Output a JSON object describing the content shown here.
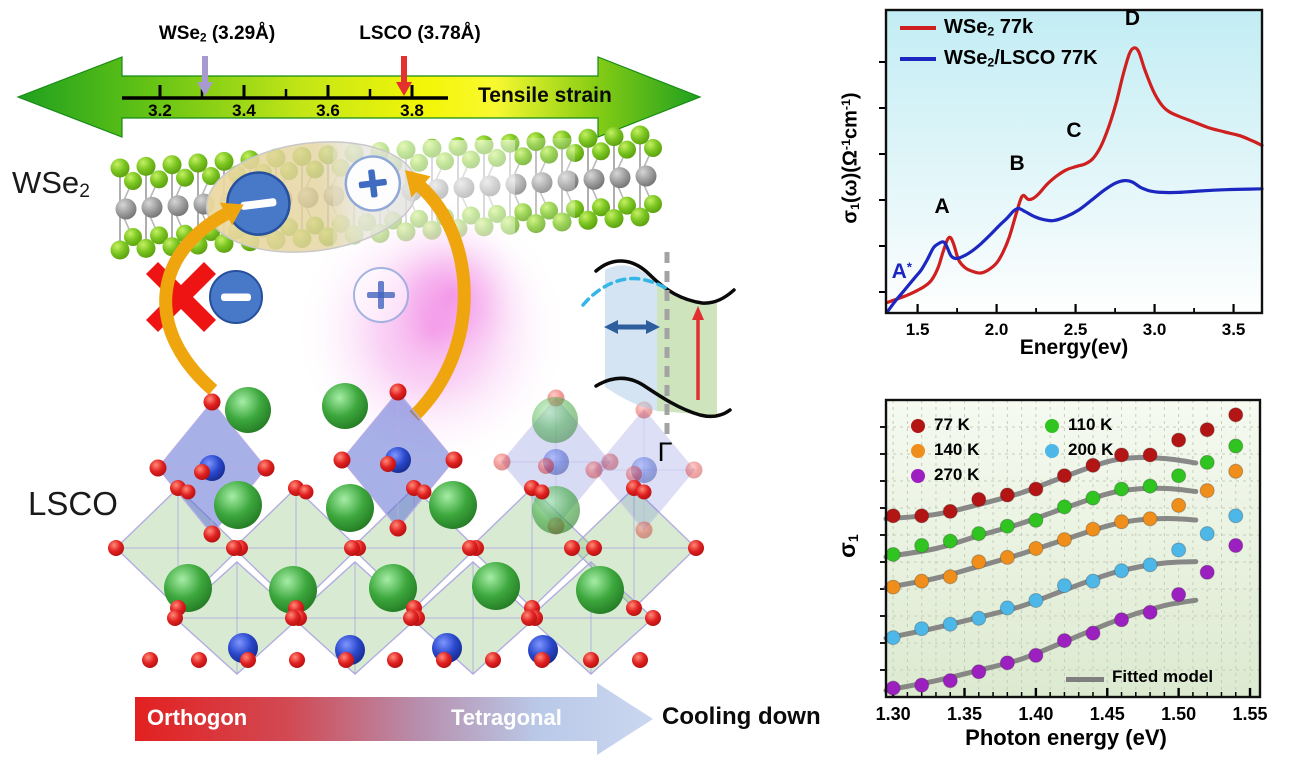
{
  "diagram": {
    "strain_arrow": {
      "wse2_label_rich": [
        {
          "t": "WSe"
        },
        {
          "t": "2",
          "s": "sub"
        },
        {
          "t": " (3.29Å)"
        }
      ],
      "lsco_label": "LSCO (3.78Å)",
      "axis_tick_labels": [
        "3.2",
        "3.4",
        "3.6",
        "3.8"
      ],
      "label": "Tensile strain",
      "wse2_pointer_color": "#a89ad0",
      "lsco_pointer_color": "#e53030",
      "arrow_green": "#1fa01f",
      "arrow_yellow": "#f4f607"
    },
    "wse2_layer_label_rich": [
      {
        "t": "WSe"
      },
      {
        "t": "2",
        "s": "sub"
      }
    ],
    "lsco_layer_label": "LSCO",
    "gamma_label": "Γ",
    "phase_arrow": {
      "left_label": "Orthogon",
      "right_label": "Tetragonal",
      "outside_label": "Cooling down",
      "red": "#e32020",
      "blue": "#bac9e8"
    }
  },
  "chart_data": [
    {
      "id": "optical-conductivity",
      "type": "line",
      "xlabel": "Energy(ev)",
      "ylabel_rich": [
        {
          "t": "σ"
        },
        {
          "t": "1",
          "s": "sub"
        },
        {
          "t": "(ω)(Ω"
        },
        {
          "t": "-1",
          "s": "sup"
        },
        {
          "t": "cm"
        },
        {
          "t": "-1",
          "s": "sup"
        },
        {
          "t": ")"
        }
      ],
      "xlim": [
        1.3,
        3.68
      ],
      "x_ticks": [
        1.5,
        2.0,
        2.5,
        3.0,
        3.5
      ],
      "x_tick_labels": [
        "1.5",
        "2.0",
        "2.5",
        "3.0",
        "3.5"
      ],
      "x_minor_ticks": [
        1.75,
        2.25,
        2.75,
        3.25
      ],
      "background": {
        "top": "#c2edf4",
        "bottom": "#ffffff"
      },
      "legend": [
        {
          "name_rich": [
            {
              "t": "WSe"
            },
            {
              "t": "2",
              "s": "sub"
            },
            {
              "t": " 77k"
            }
          ],
          "color": "#cf1f1f"
        },
        {
          "name_rich": [
            {
              "t": "WSe"
            },
            {
              "t": "2",
              "s": "sub"
            },
            {
              "t": "/LSCO 77K"
            }
          ],
          "color": "#1b27c0"
        }
      ],
      "series": [
        {
          "key": "wse2_77k",
          "color": "#cf1f1f",
          "points": [
            [
              1.31,
              0.035
            ],
            [
              1.38,
              0.048
            ],
            [
              1.44,
              0.06
            ],
            [
              1.5,
              0.075
            ],
            [
              1.55,
              0.09
            ],
            [
              1.59,
              0.11
            ],
            [
              1.63,
              0.15
            ],
            [
              1.66,
              0.2
            ],
            [
              1.69,
              0.243
            ],
            [
              1.71,
              0.248
            ],
            [
              1.73,
              0.225
            ],
            [
              1.76,
              0.175
            ],
            [
              1.8,
              0.15
            ],
            [
              1.85,
              0.137
            ],
            [
              1.9,
              0.132
            ],
            [
              1.95,
              0.143
            ],
            [
              2.0,
              0.165
            ],
            [
              2.04,
              0.2
            ],
            [
              2.08,
              0.25
            ],
            [
              2.12,
              0.32
            ],
            [
              2.15,
              0.372
            ],
            [
              2.17,
              0.388
            ],
            [
              2.2,
              0.375
            ],
            [
              2.23,
              0.378
            ],
            [
              2.27,
              0.395
            ],
            [
              2.32,
              0.425
            ],
            [
              2.38,
              0.452
            ],
            [
              2.44,
              0.472
            ],
            [
              2.5,
              0.483
            ],
            [
              2.56,
              0.492
            ],
            [
              2.61,
              0.51
            ],
            [
              2.66,
              0.55
            ],
            [
              2.71,
              0.615
            ],
            [
              2.76,
              0.7
            ],
            [
              2.8,
              0.785
            ],
            [
              2.84,
              0.855
            ],
            [
              2.87,
              0.875
            ],
            [
              2.9,
              0.862
            ],
            [
              2.94,
              0.8
            ],
            [
              2.99,
              0.735
            ],
            [
              3.04,
              0.69
            ],
            [
              3.09,
              0.665
            ],
            [
              3.16,
              0.648
            ],
            [
              3.24,
              0.632
            ],
            [
              3.34,
              0.612
            ],
            [
              3.44,
              0.598
            ],
            [
              3.54,
              0.585
            ],
            [
              3.62,
              0.568
            ],
            [
              3.68,
              0.553
            ]
          ]
        },
        {
          "key": "wse2_lsco_77k",
          "color": "#1b27c0",
          "points": [
            [
              1.31,
              0.005
            ],
            [
              1.36,
              0.04
            ],
            [
              1.4,
              0.065
            ],
            [
              1.44,
              0.09
            ],
            [
              1.48,
              0.115
            ],
            [
              1.52,
              0.14
            ],
            [
              1.56,
              0.175
            ],
            [
              1.6,
              0.215
            ],
            [
              1.63,
              0.228
            ],
            [
              1.66,
              0.235
            ],
            [
              1.68,
              0.225
            ],
            [
              1.71,
              0.19
            ],
            [
              1.74,
              0.18
            ],
            [
              1.78,
              0.185
            ],
            [
              1.84,
              0.203
            ],
            [
              1.9,
              0.228
            ],
            [
              1.96,
              0.258
            ],
            [
              2.02,
              0.29
            ],
            [
              2.07,
              0.315
            ],
            [
              2.11,
              0.338
            ],
            [
              2.14,
              0.345
            ],
            [
              2.18,
              0.335
            ],
            [
              2.24,
              0.318
            ],
            [
              2.3,
              0.308
            ],
            [
              2.36,
              0.305
            ],
            [
              2.44,
              0.318
            ],
            [
              2.52,
              0.34
            ],
            [
              2.6,
              0.372
            ],
            [
              2.68,
              0.405
            ],
            [
              2.75,
              0.428
            ],
            [
              2.81,
              0.437
            ],
            [
              2.86,
              0.432
            ],
            [
              2.91,
              0.415
            ],
            [
              2.97,
              0.403
            ],
            [
              3.05,
              0.398
            ],
            [
              3.15,
              0.398
            ],
            [
              3.3,
              0.403
            ],
            [
              3.45,
              0.407
            ],
            [
              3.6,
              0.409
            ],
            [
              3.68,
              0.41
            ]
          ]
        }
      ],
      "annotations": [
        {
          "text_rich": [
            {
              "t": "A"
            }
          ],
          "x": 1.655,
          "y": 0.315,
          "color": "#000000"
        },
        {
          "text_rich": [
            {
              "t": "A"
            },
            {
              "t": "*",
              "s": "sup"
            }
          ],
          "x": 1.4,
          "y": 0.1,
          "color": "#1b27c0"
        },
        {
          "text_rich": [
            {
              "t": "B"
            }
          ],
          "x": 2.13,
          "y": 0.455,
          "color": "#000000"
        },
        {
          "text_rich": [
            {
              "t": "C"
            }
          ],
          "x": 2.49,
          "y": 0.565,
          "color": "#000000"
        },
        {
          "text_rich": [
            {
              "t": "D"
            }
          ],
          "x": 2.86,
          "y": 0.935,
          "color": "#000000"
        }
      ]
    },
    {
      "id": "sigma1-vs-photon-energy",
      "type": "scatter",
      "xlabel": "Photon energy (eV)",
      "ylabel_rich": [
        {
          "t": "σ"
        },
        {
          "t": "1",
          "s": "sub"
        }
      ],
      "xlim": [
        1.295,
        1.557
      ],
      "x_ticks": [
        1.3,
        1.35,
        1.4,
        1.45,
        1.5,
        1.55
      ],
      "x_tick_labels": [
        "1.30",
        "1.35",
        "1.40",
        "1.45",
        "1.50",
        "1.55"
      ],
      "background": {
        "top": "#f6faf1",
        "bottom": "#dcead0"
      },
      "grid": {
        "dashed": true,
        "color": "#c6cdbb",
        "x_step": 0.01,
        "y_lines": 10
      },
      "x": [
        1.3,
        1.32,
        1.34,
        1.36,
        1.38,
        1.4,
        1.42,
        1.44,
        1.46,
        1.48,
        1.5,
        1.52,
        1.54
      ],
      "series": [
        {
          "name": "77 K",
          "color": "#b31414",
          "values": [
            0.61,
            0.61,
            0.625,
            0.665,
            0.68,
            0.7,
            0.745,
            0.78,
            0.815,
            0.815,
            0.865,
            0.9,
            0.95
          ]
        },
        {
          "name": "140 K",
          "color": "#ef8e1b",
          "values": [
            0.37,
            0.39,
            0.405,
            0.455,
            0.47,
            0.5,
            0.53,
            0.565,
            0.59,
            0.6,
            0.645,
            0.695,
            0.76
          ]
        },
        {
          "name": "270 K",
          "color": "#9c1fbf",
          "values": [
            0.03,
            0.04,
            0.055,
            0.085,
            0.115,
            0.14,
            0.19,
            0.215,
            0.26,
            0.285,
            0.345,
            0.42,
            0.51
          ]
        },
        {
          "name": "110 K",
          "color": "#2fc41f",
          "values": [
            0.48,
            0.51,
            0.525,
            0.55,
            0.575,
            0.595,
            0.64,
            0.67,
            0.7,
            0.71,
            0.745,
            0.79,
            0.845
          ]
        },
        {
          "name": "200 K",
          "color": "#4db8e8",
          "values": [
            0.2,
            0.23,
            0.245,
            0.265,
            0.3,
            0.325,
            0.375,
            0.39,
            0.425,
            0.445,
            0.495,
            0.55,
            0.61
          ]
        }
      ],
      "legend_layout": {
        "col1": [
          0,
          1,
          2
        ],
        "col2": [
          3,
          4
        ]
      },
      "fitted": {
        "label": "Fitted model",
        "color": "#7f7f7f",
        "curves": [
          [
            [
              1.295,
              0.6
            ],
            [
              1.33,
              0.615
            ],
            [
              1.36,
              0.648
            ],
            [
              1.39,
              0.688
            ],
            [
              1.42,
              0.742
            ],
            [
              1.45,
              0.792
            ],
            [
              1.47,
              0.806
            ],
            [
              1.492,
              0.802
            ],
            [
              1.512,
              0.788
            ]
          ],
          [
            [
              1.295,
              0.368
            ],
            [
              1.33,
              0.4
            ],
            [
              1.36,
              0.44
            ],
            [
              1.39,
              0.482
            ],
            [
              1.42,
              0.53
            ],
            [
              1.45,
              0.576
            ],
            [
              1.47,
              0.595
            ],
            [
              1.492,
              0.601
            ],
            [
              1.512,
              0.596
            ]
          ],
          [
            [
              1.295,
              0.022
            ],
            [
              1.33,
              0.055
            ],
            [
              1.36,
              0.09
            ],
            [
              1.39,
              0.128
            ],
            [
              1.42,
              0.186
            ],
            [
              1.45,
              0.246
            ],
            [
              1.47,
              0.28
            ],
            [
              1.492,
              0.31
            ],
            [
              1.512,
              0.326
            ]
          ],
          [
            [
              1.295,
              0.472
            ],
            [
              1.33,
              0.5
            ],
            [
              1.36,
              0.543
            ],
            [
              1.39,
              0.585
            ],
            [
              1.42,
              0.636
            ],
            [
              1.45,
              0.684
            ],
            [
              1.47,
              0.7
            ],
            [
              1.492,
              0.702
            ],
            [
              1.512,
              0.692
            ]
          ],
          [
            [
              1.295,
              0.198
            ],
            [
              1.33,
              0.233
            ],
            [
              1.36,
              0.268
            ],
            [
              1.39,
              0.306
            ],
            [
              1.42,
              0.36
            ],
            [
              1.45,
              0.412
            ],
            [
              1.47,
              0.436
            ],
            [
              1.492,
              0.452
            ],
            [
              1.512,
              0.456
            ]
          ]
        ]
      }
    }
  ]
}
